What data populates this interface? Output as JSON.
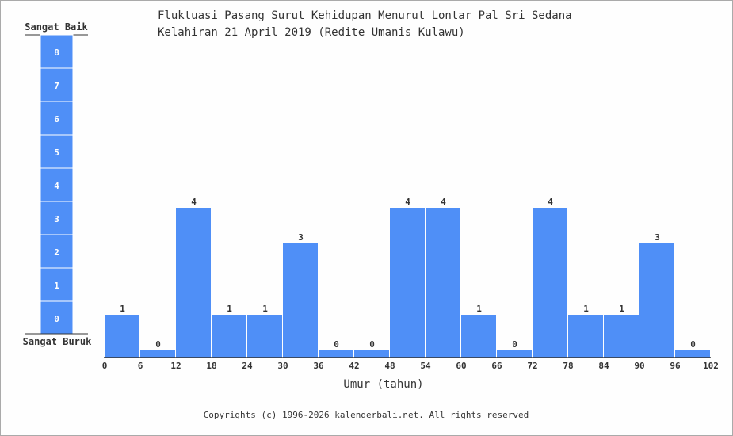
{
  "chart_data": {
    "type": "bar",
    "title_line1": "Fluktuasi Pasang Surut Kehidupan Menurut Lontar Pal Sri Sedana",
    "title_line2": "Kelahiran 21 April 2019 (Redite Umanis Kulawu)",
    "xlabel": "Umur (tahun)",
    "x_ticks": [
      "0",
      "6",
      "12",
      "18",
      "24",
      "30",
      "36",
      "42",
      "48",
      "54",
      "60",
      "66",
      "72",
      "78",
      "84",
      "90",
      "96",
      "102"
    ],
    "bin_edges": [
      0,
      6,
      12,
      18,
      24,
      30,
      36,
      42,
      48,
      54,
      60,
      66,
      72,
      78,
      84,
      90,
      96,
      102
    ],
    "values": [
      1,
      0,
      4,
      1,
      1,
      3,
      0,
      0,
      4,
      4,
      1,
      0,
      4,
      1,
      1,
      3,
      0
    ],
    "ylim": [
      0,
      8
    ],
    "scale": {
      "top_label": "Sangat Baik",
      "bottom_label": "Sangat Buruk",
      "levels": [
        "8",
        "7",
        "6",
        "5",
        "4",
        "3",
        "2",
        "1",
        "0"
      ]
    },
    "bar_color": "#4f8ff7",
    "grid": false
  },
  "footer": "Copyrights (c) 1996-2026 kalenderbali.net. All rights reserved"
}
